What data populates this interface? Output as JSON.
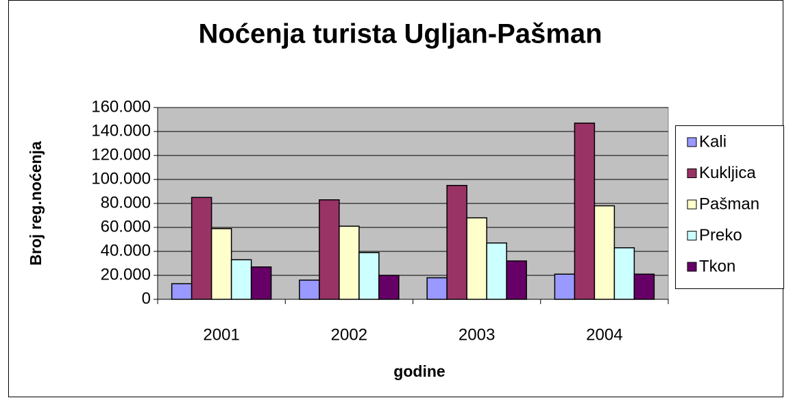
{
  "chart_data": {
    "type": "bar",
    "title": "Noćenja turista Ugljan-Pašman",
    "xlabel": "godine",
    "ylabel": "Broj reg.noćenja",
    "categories": [
      "2001",
      "2002",
      "2003",
      "2004"
    ],
    "series": [
      {
        "name": "Kali",
        "color": "#9999ff",
        "values": [
          13000,
          16000,
          18000,
          21000
        ]
      },
      {
        "name": "Kukljica",
        "color": "#993366",
        "values": [
          85000,
          83000,
          95000,
          147000
        ]
      },
      {
        "name": "Pašman",
        "color": "#ffffcc",
        "values": [
          59000,
          61000,
          68000,
          78000
        ]
      },
      {
        "name": "Preko",
        "color": "#ccffff",
        "values": [
          33000,
          39000,
          47000,
          43000
        ]
      },
      {
        "name": "Tkon",
        "color": "#660066",
        "values": [
          27000,
          20000,
          32000,
          21000
        ]
      }
    ],
    "ylim": [
      0,
      160000
    ],
    "yticks": [
      0,
      {
        "value": 20000,
        "label": "20.000"
      },
      {
        "value": 40000,
        "label": "40.000"
      },
      {
        "value": 60000,
        "label": "60.000"
      },
      {
        "value": 80000,
        "label": "80.000"
      },
      {
        "value": 100000,
        "label": "100.000"
      },
      {
        "value": 120000,
        "label": "120.000"
      },
      {
        "value": 140000,
        "label": "140.000"
      },
      {
        "value": 160000,
        "label": "160.000"
      }
    ],
    "grid": true,
    "legend": "right",
    "plot_background": "#c0c0c0"
  }
}
